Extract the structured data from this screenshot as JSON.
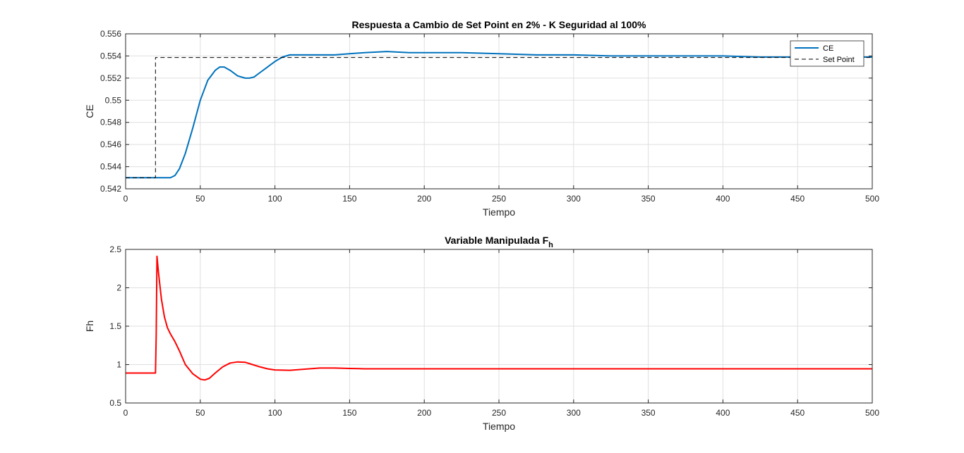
{
  "chart_data": [
    {
      "type": "line",
      "title": "Respuesta a Cambio de Set Point en 2% - K Seguridad al 100%",
      "xlabel": "Tiempo",
      "ylabel": "CE",
      "xlim": [
        0,
        500
      ],
      "ylim": [
        0.542,
        0.556
      ],
      "xticks": [
        0,
        50,
        100,
        150,
        200,
        250,
        300,
        350,
        400,
        450,
        500
      ],
      "yticks": [
        0.542,
        0.544,
        0.546,
        0.548,
        0.55,
        0.552,
        0.554,
        0.556
      ],
      "ytick_labels": [
        "0.542",
        "0.544",
        "0.546",
        "0.548",
        "0.55",
        "0.552",
        "0.554",
        "0.556"
      ],
      "grid": true,
      "legend_position": "top-right",
      "series": [
        {
          "name": "CE",
          "color": "#0072BD",
          "style": "solid",
          "x": [
            0,
            10,
            20,
            25,
            30,
            33,
            36,
            40,
            45,
            50,
            55,
            60,
            63,
            66,
            70,
            75,
            80,
            83,
            86,
            90,
            95,
            100,
            105,
            110,
            115,
            120,
            130,
            140,
            150,
            160,
            175,
            190,
            200,
            225,
            250,
            275,
            300,
            325,
            350,
            375,
            400,
            425,
            450,
            475,
            500
          ],
          "y": [
            0.543,
            0.543,
            0.543,
            0.543,
            0.543,
            0.5432,
            0.5438,
            0.5452,
            0.5475,
            0.55,
            0.5518,
            0.5527,
            0.553,
            0.553,
            0.5527,
            0.5522,
            0.552,
            0.552,
            0.5521,
            0.5525,
            0.553,
            0.5535,
            0.5539,
            0.5541,
            0.5541,
            0.5541,
            0.5541,
            0.5541,
            0.5542,
            0.5543,
            0.5544,
            0.5543,
            0.5543,
            0.5543,
            0.5542,
            0.5541,
            0.5541,
            0.554,
            0.554,
            0.554,
            0.554,
            0.5539,
            0.5539,
            0.5539,
            0.5539
          ]
        },
        {
          "name": "Set Point",
          "color": "#000000",
          "style": "dashed",
          "x": [
            0,
            20,
            20,
            500
          ],
          "y": [
            0.543,
            0.543,
            0.55386,
            0.55386
          ]
        }
      ]
    },
    {
      "type": "line",
      "title": "Variable Manipulada F",
      "title_subscript": "h",
      "xlabel": "Tiempo",
      "ylabel": "Fh",
      "xlim": [
        0,
        500
      ],
      "ylim": [
        0.5,
        2.5
      ],
      "xticks": [
        0,
        50,
        100,
        150,
        200,
        250,
        300,
        350,
        400,
        450,
        500
      ],
      "yticks": [
        0.5,
        1,
        1.5,
        2,
        2.5
      ],
      "ytick_labels": [
        "0.5",
        "1",
        "1.5",
        "2",
        "2.5"
      ],
      "grid": true,
      "series": [
        {
          "color": "#FF0000",
          "style": "solid",
          "x": [
            0,
            20,
            20.5,
            21,
            22,
            24,
            26,
            28,
            30,
            33,
            36,
            40,
            45,
            50,
            53,
            56,
            60,
            65,
            70,
            75,
            80,
            85,
            90,
            95,
            100,
            110,
            120,
            130,
            140,
            150,
            160,
            170,
            180,
            200,
            250,
            300,
            350,
            400,
            450,
            500
          ],
          "y": [
            0.89,
            0.89,
            1.4,
            2.41,
            2.2,
            1.85,
            1.62,
            1.48,
            1.4,
            1.3,
            1.18,
            1.0,
            0.88,
            0.81,
            0.8,
            0.82,
            0.89,
            0.97,
            1.02,
            1.035,
            1.03,
            1.0,
            0.97,
            0.945,
            0.93,
            0.925,
            0.94,
            0.955,
            0.955,
            0.95,
            0.945,
            0.945,
            0.945,
            0.945,
            0.945,
            0.945,
            0.945,
            0.945,
            0.945,
            0.945
          ]
        }
      ]
    }
  ]
}
